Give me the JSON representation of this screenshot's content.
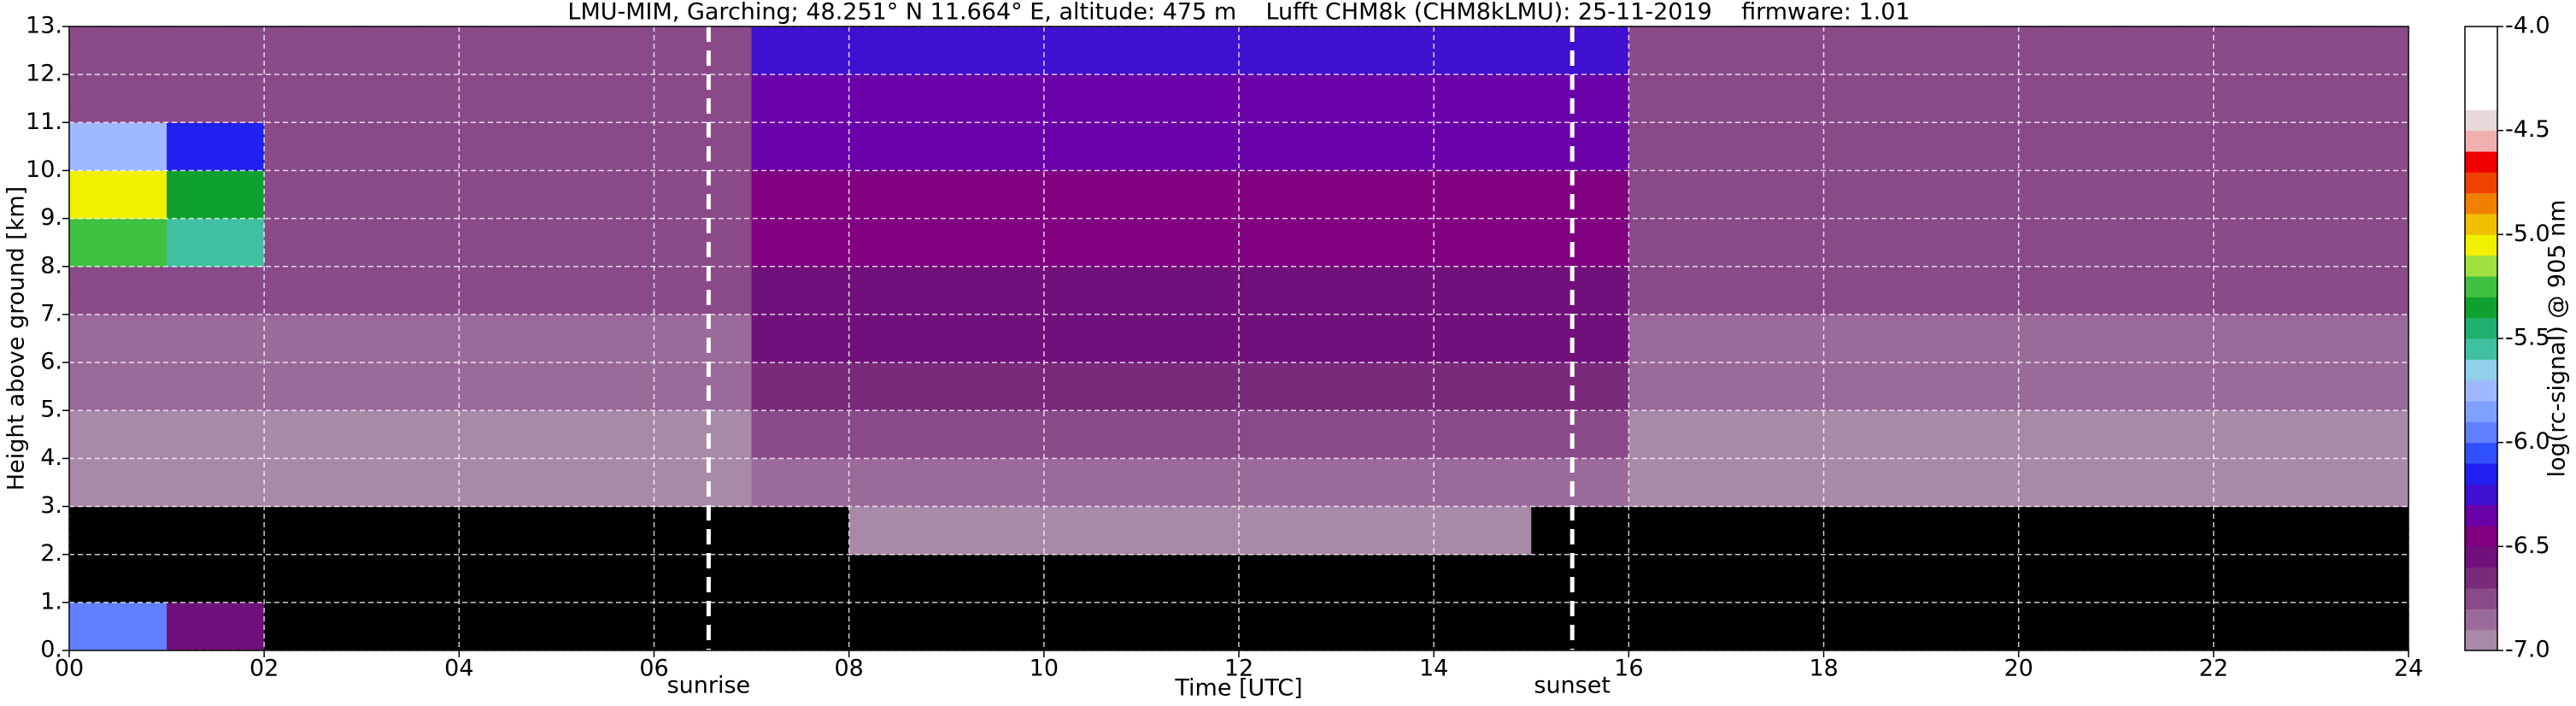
{
  "chart_data": {
    "type": "heatmap",
    "title": "LMU-MIM, Garching; 48.251° N 11.664° E, altitude: 475 m    Lufft CHM8k (CHM8kLMU): 25-11-2019    firmware: 1.01",
    "x_label": "Time [UTC]",
    "y_label": "Height above ground [km]",
    "colorbar_label": "log(rc-signal) @ 905 nm",
    "xlim": [
      0,
      24
    ],
    "ylim": [
      0,
      13
    ],
    "zlim": [
      -7,
      -4
    ],
    "xticks": [
      {
        "value": 0,
        "label": "00"
      },
      {
        "value": 2,
        "label": "02"
      },
      {
        "value": 4,
        "label": "04"
      },
      {
        "value": 6,
        "label": "06"
      },
      {
        "value": 8,
        "label": "08"
      },
      {
        "value": 10,
        "label": "10"
      },
      {
        "value": 12,
        "label": "12"
      },
      {
        "value": 14,
        "label": "14"
      },
      {
        "value": 16,
        "label": "16"
      },
      {
        "value": 18,
        "label": "18"
      },
      {
        "value": 20,
        "label": "20"
      },
      {
        "value": 22,
        "label": "22"
      },
      {
        "value": 24,
        "label": "24"
      }
    ],
    "yticks": [
      {
        "value": 0,
        "label": "0."
      },
      {
        "value": 1,
        "label": "1."
      },
      {
        "value": 2,
        "label": "2."
      },
      {
        "value": 3,
        "label": "3."
      },
      {
        "value": 4,
        "label": "4."
      },
      {
        "value": 5,
        "label": "5."
      },
      {
        "value": 6,
        "label": "6."
      },
      {
        "value": 7,
        "label": "7."
      },
      {
        "value": 8,
        "label": "8."
      },
      {
        "value": 9,
        "label": "9."
      },
      {
        "value": 10,
        "label": "10."
      },
      {
        "value": 11,
        "label": "11."
      },
      {
        "value": 12,
        "label": "12."
      },
      {
        "value": 13,
        "label": "13."
      }
    ],
    "zticks": [
      {
        "value": -7,
        "label": "-7.0"
      },
      {
        "value": -6.5,
        "label": "-6.5"
      },
      {
        "value": -6,
        "label": "-6.0"
      },
      {
        "value": -5.5,
        "label": "-5.5"
      },
      {
        "value": -5,
        "label": "-5.0"
      },
      {
        "value": -4.5,
        "label": "-4.5"
      },
      {
        "value": -4,
        "label": "-4.0"
      }
    ],
    "grid": true,
    "under_color": "#000000",
    "cmap": [
      "#a88aa8",
      "#9a6a9a",
      "#8a4a8a",
      "#7a2a7a",
      "#70107a",
      "#800080",
      "#6a00a8",
      "#4010d0",
      "#2020f0",
      "#3050ff",
      "#6080ff",
      "#80a0ff",
      "#a0b8ff",
      "#90d0e8",
      "#40c0a0",
      "#20b070",
      "#10a030",
      "#40c040",
      "#a0e040",
      "#f0f000",
      "#f0c000",
      "#f08000",
      "#f04000",
      "#f00000",
      "#f0b0b0",
      "#e8d8d8",
      "#ffffff",
      "#ffffff",
      "#ffffff",
      "#ffffff"
    ],
    "x_edges": [
      0,
      1,
      2,
      3,
      4,
      5,
      6,
      7,
      8,
      9,
      10,
      11,
      12,
      13,
      14,
      15,
      16,
      17,
      18,
      19,
      20,
      21,
      22,
      23,
      24
    ],
    "y_edges": [
      0,
      1,
      2,
      3,
      4,
      5,
      6,
      7,
      8,
      9,
      10,
      11,
      12,
      13
    ],
    "z": [
      [
        -6.0,
        -6.6,
        -7.3,
        -7.3,
        -7.3,
        -7.3,
        -7.3,
        -7.3,
        -7.3,
        -7.3,
        -7.3,
        -7.3,
        -7.3,
        -7.3,
        -7.3,
        -7.3,
        -7.3,
        -7.3,
        -7.3,
        -7.3,
        -7.3,
        -7.3,
        -7.3,
        -7.3
      ],
      [
        -7.3,
        -7.3,
        -7.3,
        -7.3,
        -7.3,
        -7.3,
        -7.3,
        -7.3,
        -7.1,
        -7.1,
        -7.1,
        -7.1,
        -7.1,
        -7.1,
        -7.1,
        -7.3,
        -7.3,
        -7.3,
        -7.3,
        -7.3,
        -7.3,
        -7.3,
        -7.3,
        -7.3
      ],
      [
        -7.2,
        -7.2,
        -7.2,
        -7.2,
        -7.2,
        -7.2,
        -7.2,
        -7.2,
        -7.0,
        -7.0,
        -7.0,
        -7.0,
        -7.0,
        -7.0,
        -7.0,
        -7.2,
        -7.2,
        -7.2,
        -7.2,
        -7.2,
        -7.2,
        -7.2,
        -7.2,
        -7.2
      ],
      [
        -7.0,
        -7.0,
        -7.0,
        -7.0,
        -7.0,
        -7.0,
        -7.0,
        -6.9,
        -6.9,
        -6.9,
        -6.9,
        -6.9,
        -6.9,
        -6.9,
        -6.9,
        -6.9,
        -7.0,
        -7.0,
        -7.0,
        -7.0,
        -7.0,
        -7.0,
        -7.0,
        -7.0
      ],
      [
        -7.0,
        -7.0,
        -7.0,
        -7.0,
        -7.0,
        -7.0,
        -7.0,
        -6.8,
        -6.8,
        -6.8,
        -6.8,
        -6.8,
        -6.8,
        -6.8,
        -6.8,
        -6.8,
        -7.0,
        -7.0,
        -7.0,
        -7.0,
        -7.0,
        -7.0,
        -7.0,
        -7.0
      ],
      [
        -6.9,
        -6.9,
        -6.9,
        -6.9,
        -6.9,
        -6.9,
        -6.9,
        -6.7,
        -6.7,
        -6.7,
        -6.7,
        -6.7,
        -6.7,
        -6.7,
        -6.7,
        -6.7,
        -6.9,
        -6.9,
        -6.9,
        -6.9,
        -6.9,
        -6.9,
        -6.9,
        -6.9
      ],
      [
        -6.9,
        -6.9,
        -6.9,
        -6.9,
        -6.9,
        -6.9,
        -6.9,
        -6.6,
        -6.6,
        -6.6,
        -6.6,
        -6.6,
        -6.6,
        -6.6,
        -6.6,
        -6.6,
        -6.9,
        -6.9,
        -6.9,
        -6.9,
        -6.9,
        -6.9,
        -6.9,
        -6.9
      ],
      [
        -6.8,
        -6.8,
        -6.8,
        -6.8,
        -6.8,
        -6.8,
        -6.8,
        -6.6,
        -6.6,
        -6.6,
        -6.6,
        -6.6,
        -6.6,
        -6.6,
        -6.6,
        -6.6,
        -6.8,
        -6.8,
        -6.8,
        -6.8,
        -6.8,
        -6.8,
        -6.8,
        -6.8
      ],
      [
        -5.3,
        -5.6,
        -6.8,
        -6.8,
        -6.8,
        -6.8,
        -6.8,
        -6.5,
        -6.5,
        -6.5,
        -6.5,
        -6.5,
        -6.5,
        -6.5,
        -6.5,
        -6.5,
        -6.8,
        -6.8,
        -6.8,
        -6.8,
        -6.8,
        -6.8,
        -6.8,
        -6.8
      ],
      [
        -5.1,
        -5.4,
        -6.8,
        -6.8,
        -6.8,
        -6.8,
        -6.8,
        -6.5,
        -6.5,
        -6.5,
        -6.5,
        -6.5,
        -6.5,
        -6.5,
        -6.5,
        -6.5,
        -6.8,
        -6.8,
        -6.8,
        -6.8,
        -6.8,
        -6.8,
        -6.8,
        -6.8
      ],
      [
        -5.8,
        -6.2,
        -6.8,
        -6.8,
        -6.8,
        -6.8,
        -6.8,
        -6.4,
        -6.4,
        -6.4,
        -6.4,
        -6.4,
        -6.4,
        -6.4,
        -6.4,
        -6.4,
        -6.8,
        -6.8,
        -6.8,
        -6.8,
        -6.8,
        -6.8,
        -6.8,
        -6.8
      ],
      [
        -6.8,
        -6.8,
        -6.8,
        -6.8,
        -6.8,
        -6.8,
        -6.8,
        -6.4,
        -6.4,
        -6.4,
        -6.4,
        -6.4,
        -6.4,
        -6.4,
        -6.4,
        -6.4,
        -6.8,
        -6.8,
        -6.8,
        -6.8,
        -6.8,
        -6.8,
        -6.8,
        -6.8
      ],
      [
        -6.8,
        -6.8,
        -6.8,
        -6.8,
        -6.8,
        -6.8,
        -6.8,
        -6.3,
        -6.3,
        -6.3,
        -6.3,
        -6.3,
        -6.3,
        -6.3,
        -6.3,
        -6.3,
        -6.8,
        -6.8,
        -6.8,
        -6.8,
        -6.8,
        -6.8,
        -6.8,
        -6.8
      ]
    ],
    "events": [
      {
        "label": "sunrise",
        "x": 6.56
      },
      {
        "label": "sunset",
        "x": 15.42
      }
    ]
  }
}
